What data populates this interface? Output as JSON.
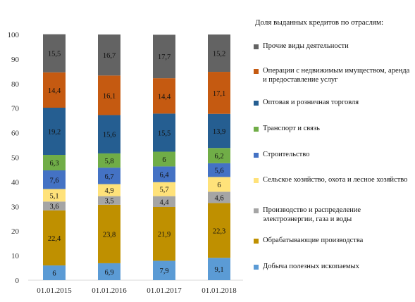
{
  "legend": {
    "title": "Доля выданных  кредитов по отраслям:"
  },
  "chart_data": {
    "type": "bar",
    "stacked": true,
    "categories": [
      "01.01.2015",
      "01.01.2016",
      "01.01.2017",
      "01.01.2018"
    ],
    "ylim": [
      0,
      100
    ],
    "yticks": [
      0,
      10,
      20,
      30,
      40,
      50,
      60,
      70,
      80,
      90,
      100
    ],
    "legend_position": "right",
    "grid": false,
    "series": [
      {
        "name": "Добыча полезных  ископаемых",
        "color": "#5b9bd5",
        "values": [
          6,
          6.9,
          7.9,
          9.1
        ],
        "labels": [
          "6",
          "6,9",
          "7,9",
          "9,1"
        ]
      },
      {
        "name": "Обрабатывающие производства",
        "color": "#bf9000",
        "values": [
          22.4,
          23.8,
          21.9,
          22.3
        ],
        "labels": [
          "22,4",
          "23,8",
          "21,9",
          "22,3"
        ]
      },
      {
        "name": "Производство и распределение электроэнергии, газа и воды",
        "color": "#a5a5a5",
        "values": [
          3.6,
          3.5,
          4.4,
          4.6
        ],
        "labels": [
          "3,6",
          "3,5",
          "4,4",
          "4,6"
        ]
      },
      {
        "name": "Сельское хозяйство,  охота  и лесное хозяйство",
        "color": "#ffe27a",
        "values": [
          5.1,
          4.9,
          5.7,
          6
        ],
        "labels": [
          "5,1",
          "4,9",
          "5,7",
          "6"
        ]
      },
      {
        "name": "Строительство",
        "color": "#4472c4",
        "values": [
          7.6,
          6.7,
          6.4,
          5.6
        ],
        "labels": [
          "7,6",
          "6,7",
          "6,4",
          "5,6"
        ]
      },
      {
        "name": "Транспорт и связь",
        "color": "#70ad47",
        "values": [
          6.3,
          5.8,
          6,
          6.2
        ],
        "labels": [
          "6,3",
          "5,8",
          "6",
          "6,2"
        ]
      },
      {
        "name": "Оптовая и розничная торговля",
        "color": "#255e91",
        "values": [
          19.2,
          15.6,
          15.5,
          13.9
        ],
        "labels": [
          "19,2",
          "15,6",
          "15,5",
          "13,9"
        ]
      },
      {
        "name": "Операции с недвижимым  имуществом, аренда и предоставление  услуг",
        "color": "#c55a11",
        "values": [
          14.4,
          16.1,
          14.4,
          17.1
        ],
        "labels": [
          "14,4",
          "16,1",
          "14,4",
          "17,1"
        ]
      },
      {
        "name": "Прочие виды деятельности",
        "color": "#636363",
        "values": [
          15.5,
          16.7,
          17.7,
          15.2
        ],
        "labels": [
          "15,5",
          "16,7",
          "17,7",
          "15,2"
        ]
      }
    ]
  }
}
